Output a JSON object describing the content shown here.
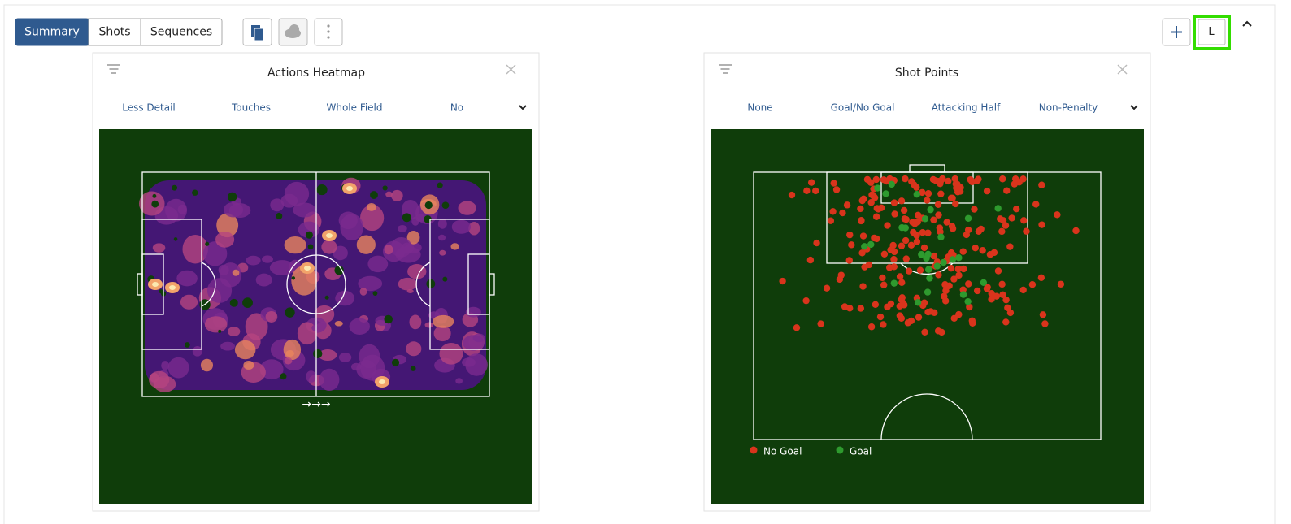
{
  "toolbar": {
    "tabs": [
      "Summary",
      "Shots",
      "Sequences"
    ],
    "user_button": "L"
  },
  "panels": [
    {
      "title": "Actions Heatmap",
      "options": [
        "Less Detail",
        "Touches",
        "Whole Field",
        "No"
      ],
      "direction": "→→→"
    },
    {
      "title": "Shot Points",
      "options": [
        "None",
        "Goal/No Goal",
        "Attacking Half",
        "Non-Penalty"
      ],
      "legend": [
        "No Goal",
        "Goal"
      ]
    }
  ]
}
